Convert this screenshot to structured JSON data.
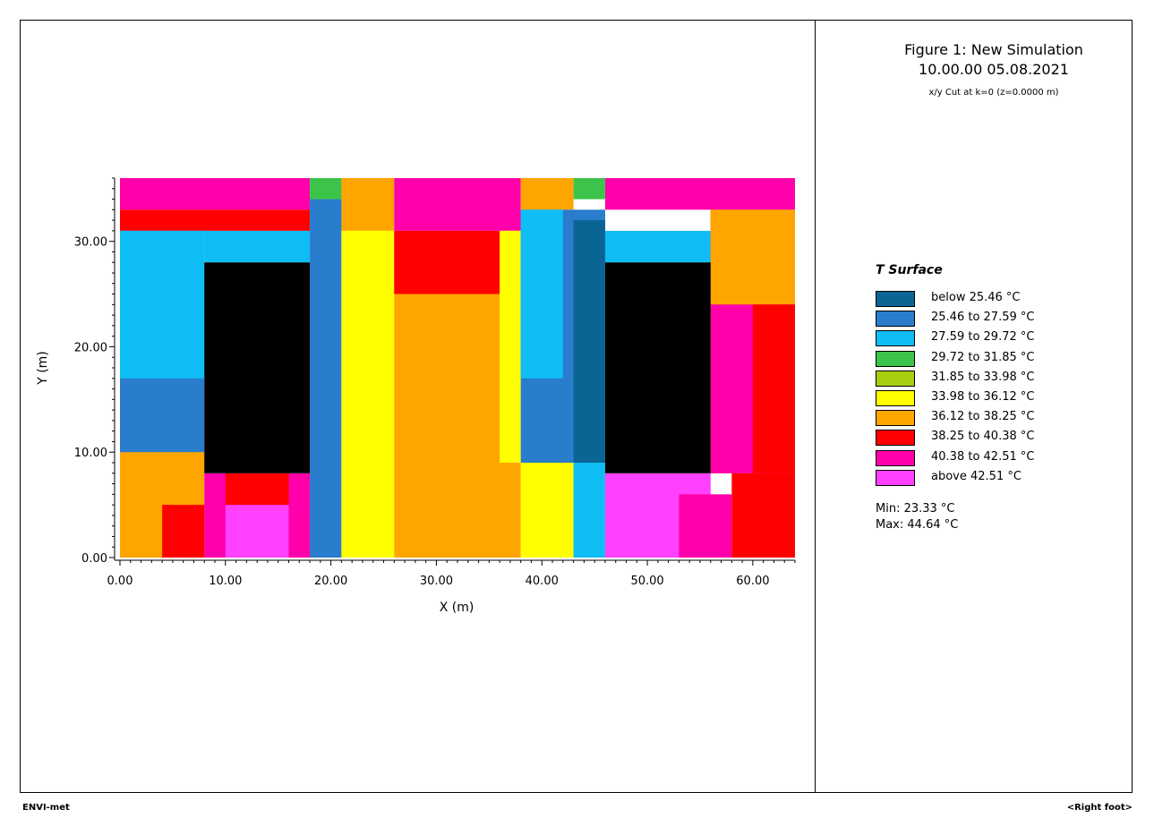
{
  "figure": {
    "title_line1": "Figure 1: New Simulation",
    "title_line2": "10.00.00 05.08.2021",
    "subtitle": "x/y Cut at k=0 (z=0.0000 m)"
  },
  "legend": {
    "title": "T Surface",
    "items": [
      {
        "label": "below 25.46 °C",
        "color": "#0a6494"
      },
      {
        "label": "25.46 to 27.59 °C",
        "color": "#2a7ccc"
      },
      {
        "label": "27.59 to 29.72 °C",
        "color": "#0fbdf5"
      },
      {
        "label": "29.72 to 31.85 °C",
        "color": "#3cc44a"
      },
      {
        "label": "31.85 to 33.98 °C",
        "color": "#a6d00f"
      },
      {
        "label": "33.98 to 36.12 °C",
        "color": "#ffff00"
      },
      {
        "label": "36.12 to 38.25 °C",
        "color": "#ffa500"
      },
      {
        "label": "38.25 to 40.38 °C",
        "color": "#ff0000"
      },
      {
        "label": "40.38 to 42.51 °C",
        "color": "#ff00aa"
      },
      {
        "label": "above 42.51 °C",
        "color": "#ff40ff"
      }
    ],
    "min": "Min: 23.33 °C",
    "max": "Max: 44.64 °C"
  },
  "footer": {
    "left": "ENVI-met",
    "right": "<Right foot>"
  },
  "chart_data": {
    "type": "heatmap",
    "xlabel": "X (m)",
    "ylabel": "Y (m)",
    "xlim": [
      0,
      64
    ],
    "ylim": [
      0,
      36
    ],
    "xticks": [
      "0.00",
      "10.00",
      "20.00",
      "30.00",
      "40.00",
      "50.00",
      "60.00"
    ],
    "yticks": [
      "0.00",
      "10.00",
      "20.00",
      "30.00"
    ],
    "building_color": "#000000",
    "buildings": [
      {
        "x0": 8,
        "x1": 18,
        "y0": 8,
        "y1": 28
      },
      {
        "x0": 46,
        "x1": 56,
        "y0": 8,
        "y1": 28
      }
    ],
    "regions": [
      {
        "x0": 0,
        "x1": 18,
        "y0": 33,
        "y1": 36,
        "class": 8
      },
      {
        "x0": 46,
        "x1": 64,
        "y0": 33,
        "y1": 36,
        "class": 8
      },
      {
        "x0": 18,
        "x1": 21,
        "y0": 34,
        "y1": 36,
        "class": 3
      },
      {
        "x0": 21,
        "x1": 26,
        "y0": 31,
        "y1": 36,
        "class": 6
      },
      {
        "x0": 26,
        "x1": 38,
        "y0": 31,
        "y1": 36,
        "class": 8
      },
      {
        "x0": 38,
        "x1": 43,
        "y0": 33,
        "y1": 36,
        "class": 6
      },
      {
        "x0": 43,
        "x1": 46,
        "y0": 34,
        "y1": 36,
        "class": 3
      },
      {
        "x0": 0,
        "x1": 18,
        "y0": 31,
        "y1": 33,
        "class": 7
      },
      {
        "x0": 0,
        "x1": 8,
        "y0": 8,
        "y1": 31,
        "class": 1
      },
      {
        "x0": 0,
        "x1": 8,
        "y0": 17,
        "y1": 31,
        "class": 2
      },
      {
        "x0": 8,
        "x1": 18,
        "y0": 28,
        "y1": 31,
        "class": 2
      },
      {
        "x0": 18,
        "x1": 21,
        "y0": 0,
        "y1": 34,
        "class": 1
      },
      {
        "x0": 21,
        "x1": 26,
        "y0": 0,
        "y1": 31,
        "class": 5
      },
      {
        "x0": 26,
        "x1": 38,
        "y0": 0,
        "y1": 31,
        "class": 6
      },
      {
        "x0": 26,
        "x1": 36,
        "y0": 25,
        "y1": 31,
        "class": 7
      },
      {
        "x0": 36,
        "x1": 38,
        "y0": 9,
        "y1": 31,
        "class": 5
      },
      {
        "x0": 38,
        "x1": 46,
        "y0": 9,
        "y1": 33,
        "class": 1
      },
      {
        "x0": 38,
        "x1": 42,
        "y0": 17,
        "y1": 33,
        "class": 2
      },
      {
        "x0": 43,
        "x1": 46,
        "y0": 9,
        "y1": 32,
        "class": 0
      },
      {
        "x0": 38,
        "x1": 43,
        "y0": 0,
        "y1": 9,
        "class": 5
      },
      {
        "x0": 43,
        "x1": 46,
        "y0": 0,
        "y1": 9,
        "class": 2
      },
      {
        "x0": 46,
        "x1": 56,
        "y0": 28,
        "y1": 31,
        "class": 2
      },
      {
        "x0": 56,
        "x1": 64,
        "y0": 8,
        "y1": 33,
        "class": 7
      },
      {
        "x0": 56,
        "x1": 64,
        "y0": 24,
        "y1": 33,
        "class": 6
      },
      {
        "x0": 0,
        "x1": 8,
        "y0": 0,
        "y1": 10,
        "class": 6
      },
      {
        "x0": 4,
        "x1": 8,
        "y0": 0,
        "y1": 5,
        "class": 7
      },
      {
        "x0": 8,
        "x1": 18,
        "y0": 0,
        "y1": 8,
        "class": 8
      },
      {
        "x0": 10,
        "x1": 16,
        "y0": 0,
        "y1": 5,
        "class": 9
      },
      {
        "x0": 10,
        "x1": 16,
        "y0": 5,
        "y1": 8,
        "class": 7
      },
      {
        "x0": 46,
        "x1": 56,
        "y0": 0,
        "y1": 8,
        "class": 9
      },
      {
        "x0": 53,
        "x1": 58,
        "y0": 0,
        "y1": 6,
        "class": 8
      },
      {
        "x0": 58,
        "x1": 64,
        "y0": 0,
        "y1": 8,
        "class": 7
      },
      {
        "x0": 56,
        "x1": 64,
        "y0": 8,
        "y1": 24,
        "class": 8
      },
      {
        "x0": 60,
        "x1": 64,
        "y0": 8,
        "y1": 24,
        "class": 7
      }
    ]
  }
}
